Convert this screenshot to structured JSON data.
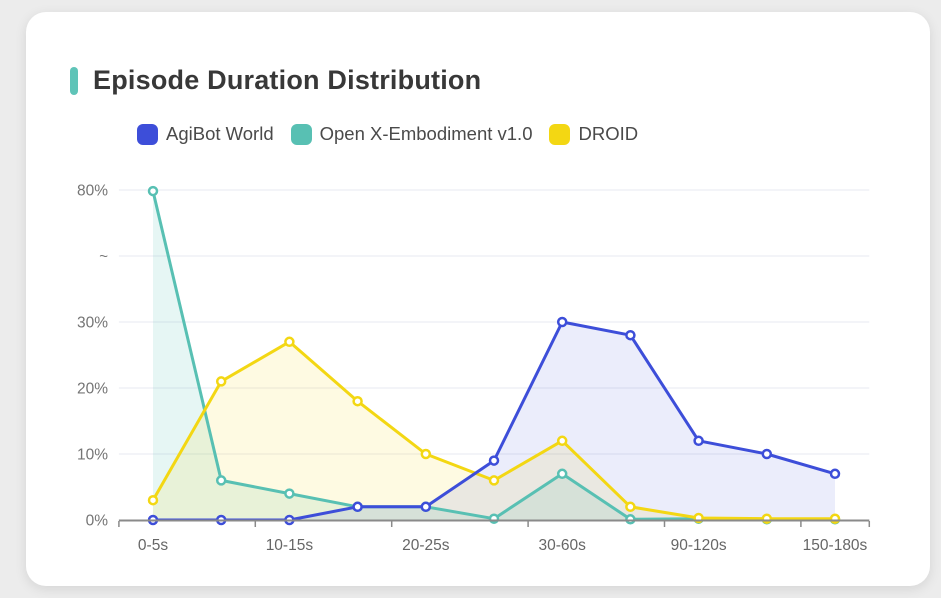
{
  "page": {
    "background_color": "#ececec",
    "card_background_color": "#ffffff"
  },
  "header": {
    "title": "Episode Duration Distribution",
    "accent_color": "#5fc4b8"
  },
  "legend": [
    {
      "label": "AgiBot World",
      "color": "#3d4ed9"
    },
    {
      "label": "Open X-Embodiment v1.0",
      "color": "#58c0b3"
    },
    {
      "label": "DROID",
      "color": "#f3d713"
    }
  ],
  "chart_data": {
    "type": "line",
    "title": "Episode Duration Distribution",
    "xlabel": "",
    "ylabel": "",
    "grid": true,
    "legend_position": "top",
    "num_points": 11,
    "x_axis": {
      "tick_labels": [
        {
          "index": 0,
          "label": "0-5s"
        },
        {
          "index": 2,
          "label": "10-15s"
        },
        {
          "index": 4,
          "label": "20-25s"
        },
        {
          "index": 6,
          "label": "30-60s"
        },
        {
          "index": 8,
          "label": "90-120s"
        },
        {
          "index": 10,
          "label": "150-180s"
        }
      ]
    },
    "y_axis": {
      "tick_values": [
        0,
        10,
        20,
        30,
        80
      ],
      "tick_labels": [
        "0%",
        "10%",
        "20%",
        "30%",
        "80%"
      ],
      "break_symbol": "~",
      "break_between": [
        30,
        80
      ],
      "unit": "%"
    },
    "series": [
      {
        "name": "Open X-Embodiment v1.0",
        "color": "#58c0b3",
        "fill_opacity": 0.15,
        "z": 1,
        "values": [
          79.6,
          6,
          4,
          2,
          2,
          0.2,
          7,
          0.1,
          0.2,
          0.1,
          0.1
        ]
      },
      {
        "name": "DROID",
        "color": "#f3d713",
        "fill_opacity": 0.12,
        "z": 2,
        "values": [
          3,
          21,
          27,
          18,
          10,
          6,
          12,
          2,
          0.3,
          0.2,
          0.2
        ]
      },
      {
        "name": "AgiBot World",
        "color": "#3d4ed9",
        "fill_opacity": 0.1,
        "z": 3,
        "values": [
          0,
          0,
          0,
          2,
          2,
          9,
          30,
          28,
          12,
          10,
          7
        ]
      }
    ],
    "axis_colors": {
      "grid_line": "#e7e9f0",
      "axis_line": "#8a8a8a",
      "y_label": "#757575",
      "x_label": "#666666"
    }
  }
}
